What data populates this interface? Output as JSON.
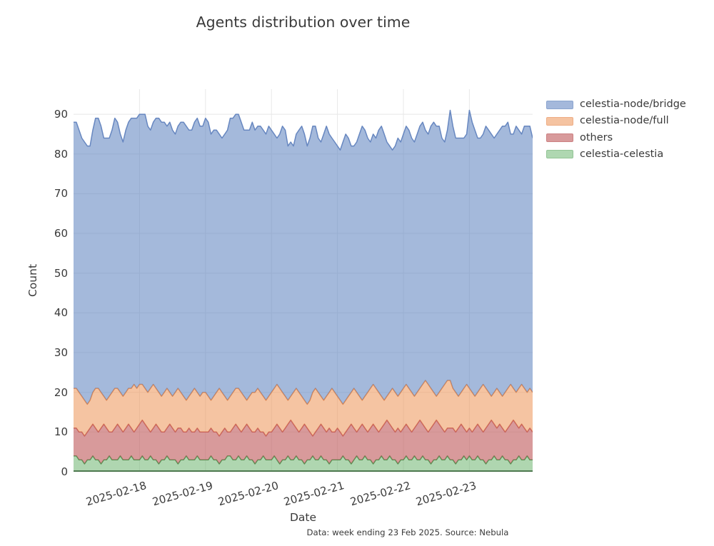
{
  "title": "Agents distribution over time",
  "xlabel": "Date",
  "ylabel": "Count",
  "caption": "Data: week ending 23 Feb 2025. Source: Nebula",
  "colors": {
    "text": "#3a3a3a",
    "grid": "#e8e8e8",
    "background": "#ffffff",
    "baseline": "#4e7a50"
  },
  "legend": {
    "position": "right-top-outside",
    "items": [
      {
        "label": "celestia-node/bridge",
        "swatch": "#a4b8db",
        "edge": "#8aa4cf"
      },
      {
        "label": "celestia-node/full",
        "swatch": "#f5c3a1",
        "edge": "#eead85"
      },
      {
        "label": "others",
        "swatch": "#d89a9b",
        "edge": "#cc8182"
      },
      {
        "label": "celestia-celestia",
        "swatch": "#afd7b1",
        "edge": "#93c496"
      }
    ]
  },
  "chart_data": {
    "type": "area",
    "stacked": true,
    "grid": true,
    "x_unit": "hour",
    "x_range": [
      "2025-02-17 00:00",
      "2025-02-23 23:00"
    ],
    "x_tick_labels": [
      "2025-02-18",
      "2025-02-19",
      "2025-02-20",
      "2025-02-21",
      "2025-02-22",
      "2025-02-23"
    ],
    "x_tick_indices": [
      24,
      48,
      72,
      96,
      120,
      144
    ],
    "y_ticks": [
      0,
      10,
      20,
      30,
      40,
      50,
      60,
      70,
      80,
      90
    ],
    "ylim": [
      0,
      96.3
    ],
    "draw_order": [
      "celestia",
      "others",
      "full",
      "bridge"
    ],
    "series": [
      {
        "id": "celestia",
        "name": "celestia-celestia",
        "line": "#4e9350",
        "fill": "#5fae62",
        "fill_opacity": 0.5,
        "values": [
          4,
          4,
          3,
          3,
          2,
          3,
          3,
          4,
          3,
          3,
          2,
          3,
          3,
          4,
          3,
          3,
          3,
          4,
          3,
          3,
          3,
          4,
          3,
          3,
          3,
          4,
          3,
          3,
          4,
          3,
          3,
          2,
          3,
          3,
          4,
          3,
          3,
          3,
          2,
          3,
          3,
          4,
          3,
          3,
          3,
          4,
          3,
          3,
          3,
          3,
          4,
          3,
          3,
          2,
          3,
          3,
          4,
          4,
          3,
          3,
          4,
          3,
          3,
          4,
          3,
          3,
          2,
          3,
          3,
          4,
          3,
          3,
          3,
          4,
          3,
          2,
          3,
          3,
          4,
          3,
          3,
          4,
          3,
          3,
          2,
          3,
          3,
          4,
          3,
          3,
          4,
          3,
          3,
          2,
          3,
          3,
          3,
          3,
          4,
          3,
          3,
          2,
          3,
          4,
          3,
          3,
          4,
          3,
          3,
          2,
          3,
          3,
          4,
          3,
          3,
          4,
          3,
          3,
          2,
          3,
          3,
          4,
          3,
          3,
          4,
          3,
          3,
          4,
          3,
          3,
          2,
          3,
          3,
          4,
          3,
          3,
          4,
          3,
          3,
          2,
          3,
          3,
          4,
          3,
          4,
          3,
          3,
          4,
          3,
          3,
          2,
          3,
          3,
          4,
          3,
          3,
          4,
          3,
          3,
          2,
          3,
          3,
          4,
          3,
          3,
          4,
          3,
          3
        ]
      },
      {
        "id": "others",
        "name": "others",
        "line": "#c25b5c",
        "fill": "#c05c5d",
        "fill_opacity": 0.62,
        "values": [
          7,
          7,
          7,
          7,
          7,
          7,
          8,
          8,
          8,
          7,
          9,
          9,
          8,
          6,
          7,
          8,
          9,
          7,
          7,
          8,
          9,
          7,
          7,
          8,
          9,
          9,
          9,
          8,
          6,
          8,
          9,
          9,
          7,
          7,
          7,
          9,
          8,
          7,
          9,
          8,
          7,
          6,
          8,
          7,
          7,
          7,
          7,
          7,
          7,
          7,
          7,
          7,
          7,
          7,
          7,
          8,
          6,
          6,
          8,
          9,
          7,
          7,
          8,
          8,
          8,
          7,
          8,
          8,
          7,
          6,
          6,
          7,
          7,
          7,
          9,
          9,
          7,
          8,
          8,
          10,
          9,
          7,
          7,
          8,
          10,
          8,
          7,
          5,
          7,
          8,
          8,
          8,
          7,
          9,
          7,
          7,
          8,
          7,
          5,
          7,
          8,
          10,
          8,
          6,
          8,
          9,
          7,
          7,
          8,
          10,
          8,
          7,
          7,
          9,
          10,
          8,
          8,
          7,
          9,
          7,
          8,
          8,
          8,
          7,
          7,
          9,
          10,
          8,
          8,
          7,
          9,
          9,
          10,
          8,
          8,
          7,
          7,
          8,
          8,
          8,
          8,
          9,
          7,
          7,
          7,
          7,
          8,
          8,
          8,
          7,
          9,
          9,
          10,
          8,
          8,
          9,
          7,
          7,
          8,
          10,
          10,
          9,
          7,
          9,
          8,
          6,
          8,
          7
        ]
      },
      {
        "id": "full",
        "name": "celestia-node/full",
        "line": "#e58a50",
        "fill": "#ec9355",
        "fill_opacity": 0.55,
        "values": [
          10,
          10,
          10,
          9,
          9,
          7,
          7,
          8,
          10,
          11,
          9,
          7,
          7,
          9,
          10,
          10,
          9,
          9,
          9,
          9,
          9,
          10,
          12,
          10,
          10,
          9,
          9,
          9,
          11,
          11,
          9,
          9,
          9,
          10,
          10,
          8,
          8,
          10,
          10,
          9,
          9,
          8,
          8,
          10,
          11,
          9,
          9,
          10,
          10,
          9,
          7,
          9,
          10,
          12,
          10,
          8,
          8,
          9,
          9,
          9,
          10,
          10,
          8,
          6,
          8,
          10,
          10,
          10,
          10,
          9,
          9,
          9,
          10,
          10,
          10,
          10,
          10,
          8,
          6,
          6,
          8,
          10,
          10,
          8,
          6,
          6,
          8,
          11,
          11,
          9,
          7,
          7,
          9,
          9,
          11,
          10,
          8,
          8,
          8,
          8,
          8,
          8,
          10,
          10,
          8,
          6,
          8,
          10,
          10,
          10,
          10,
          10,
          8,
          6,
          6,
          8,
          10,
          10,
          8,
          10,
          10,
          10,
          10,
          10,
          8,
          8,
          8,
          10,
          12,
          12,
          10,
          8,
          6,
          8,
          10,
          12,
          12,
          12,
          10,
          10,
          8,
          8,
          10,
          12,
          10,
          10,
          8,
          8,
          10,
          12,
          10,
          8,
          6,
          8,
          10,
          8,
          8,
          10,
          10,
          10,
          8,
          8,
          10,
          10,
          10,
          10,
          10,
          10
        ]
      },
      {
        "id": "bridge",
        "name": "celestia-node/bridge",
        "line": "#6787c0",
        "fill": "#5a7fbd",
        "fill_opacity": 0.55,
        "values": [
          67,
          67,
          66,
          65,
          65,
          65,
          64,
          66,
          68,
          68,
          67,
          65,
          66,
          65,
          66,
          68,
          67,
          65,
          64,
          66,
          67,
          68,
          67,
          68,
          68,
          68,
          69,
          67,
          65,
          66,
          68,
          69,
          69,
          68,
          66,
          68,
          67,
          65,
          66,
          68,
          69,
          69,
          67,
          66,
          67,
          69,
          68,
          67,
          69,
          69,
          67,
          67,
          66,
          64,
          64,
          66,
          68,
          70,
          69,
          69,
          69,
          68,
          67,
          68,
          67,
          68,
          66,
          66,
          67,
          67,
          67,
          68,
          66,
          64,
          62,
          64,
          67,
          67,
          64,
          64,
          62,
          64,
          66,
          68,
          67,
          65,
          66,
          67,
          66,
          64,
          64,
          67,
          68,
          65,
          63,
          63,
          63,
          63,
          66,
          67,
          65,
          62,
          61,
          63,
          66,
          69,
          67,
          64,
          62,
          63,
          63,
          66,
          68,
          67,
          64,
          62,
          60,
          62,
          65,
          63,
          64,
          65,
          65,
          64,
          64,
          65,
          66,
          66,
          63,
          63,
          66,
          68,
          68,
          67,
          63,
          61,
          63,
          68,
          66,
          64,
          65,
          64,
          63,
          63,
          70,
          68,
          67,
          64,
          63,
          63,
          66,
          66,
          66,
          64,
          64,
          66,
          68,
          67,
          67,
          63,
          64,
          67,
          65,
          63,
          66,
          67,
          66,
          64
        ]
      }
    ]
  }
}
